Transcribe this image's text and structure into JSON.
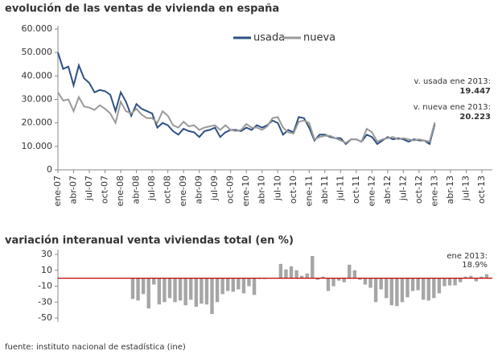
{
  "chart_data": [
    {
      "type": "line",
      "title": "evolución de las ventas de vivienda en españa",
      "categories": [
        "ene-07",
        null,
        null,
        "abr-07",
        null,
        null,
        "jul-07",
        null,
        null,
        "oct-07",
        null,
        null,
        "ene-08",
        null,
        null,
        "abr-08",
        null,
        null,
        "jul-08",
        null,
        null,
        "oct-08",
        null,
        null,
        "ene-09",
        null,
        null,
        "abr-09",
        null,
        null,
        "jul-09",
        null,
        null,
        "oct-09",
        null,
        null,
        "ene-10",
        null,
        null,
        "abr-10",
        null,
        null,
        "jul-10",
        null,
        null,
        "oct-10",
        null,
        null,
        "ene-11",
        null,
        null,
        "abr-11",
        null,
        null,
        "jul-11",
        null,
        null,
        "oct-11",
        null,
        null,
        "ene-12",
        null,
        null,
        "abr-12",
        null,
        null,
        "jul-12",
        null,
        null,
        "oct-12",
        null,
        null,
        "ene-13",
        null,
        null,
        "abr-13",
        null,
        null,
        "jul-13",
        null,
        null,
        "oct-13",
        null,
        null
      ],
      "series": [
        {
          "name": "usada",
          "color": "#2e5183",
          "values": [
            50000,
            43000,
            44000,
            36000,
            44500,
            39000,
            37000,
            33000,
            34000,
            33500,
            32000,
            25000,
            33000,
            29000,
            23000,
            28000,
            26000,
            25000,
            24000,
            18000,
            20000,
            19000,
            16500,
            15000,
            17500,
            16500,
            16000,
            14000,
            16500,
            17000,
            18000,
            14000,
            16000,
            17000,
            17000,
            16500,
            18000,
            17000,
            19000,
            18000,
            19000,
            21000,
            20000,
            15000,
            17000,
            16000,
            22500,
            22000,
            18000,
            12500,
            15000,
            15000,
            14000,
            13500,
            13500,
            11000,
            13000,
            13000,
            12000,
            15000,
            14000,
            11000,
            12500,
            14000,
            13000,
            13500,
            13000,
            12000,
            13000,
            12500,
            12500,
            11000,
            19447,
            null,
            null,
            null,
            null,
            null,
            null,
            null,
            null,
            null,
            null,
            null
          ]
        },
        {
          "name": "nueva",
          "color": "#9a9a9a",
          "values": [
            33000,
            29500,
            30000,
            25000,
            31000,
            27000,
            26500,
            25500,
            27500,
            26000,
            24000,
            20000,
            29000,
            25000,
            24000,
            26000,
            23500,
            22000,
            22000,
            20000,
            25000,
            23000,
            19000,
            18000,
            20500,
            18500,
            19000,
            17000,
            18000,
            18500,
            19000,
            17000,
            19000,
            17000,
            16500,
            17000,
            19500,
            18000,
            18000,
            17000,
            18500,
            22000,
            22500,
            18000,
            16000,
            15500,
            20500,
            21000,
            20000,
            13000,
            14000,
            14500,
            14500,
            13500,
            12500,
            11500,
            13000,
            13000,
            12000,
            17500,
            16000,
            12000,
            13000,
            13500,
            14000,
            13000,
            13500,
            13000,
            12500,
            13000,
            12500,
            12000,
            20223,
            null,
            null,
            null,
            null,
            null,
            null,
            null,
            null,
            null,
            null,
            null
          ]
        }
      ],
      "ylim": [
        0,
        60000
      ],
      "yticks": [
        0,
        {
          "value": 10000,
          "label": "10.000"
        },
        {
          "value": 20000,
          "label": "20.000"
        },
        {
          "value": 30000,
          "label": "30.000"
        },
        {
          "value": 40000,
          "label": "40.000"
        },
        {
          "value": 50000,
          "label": "50.000"
        },
        {
          "value": 60000,
          "label": "60.000"
        }
      ],
      "annotations": [
        "v. usada ene 2013:",
        "19.447",
        "v. nueva ene 2013:",
        "20.223"
      ],
      "legend": "top"
    },
    {
      "type": "bar",
      "title": "variación interanual venta viviendas total (en %)",
      "color": "#a6a6a6",
      "values": [
        -26,
        -28,
        -20,
        -38,
        -8,
        -33,
        -30,
        -25,
        -30,
        -28,
        -34,
        -27,
        -36,
        -32,
        -33,
        -45,
        -30,
        -20,
        -16,
        -17,
        -14,
        -19,
        -10,
        -21,
        -1,
        -1,
        0,
        0,
        18,
        11,
        15,
        10,
        3,
        6,
        28,
        -2,
        2,
        -16,
        -10,
        -3,
        -5,
        17,
        10,
        -2,
        -8,
        -12,
        -30,
        -14,
        -25,
        -34,
        -35,
        -30,
        -24,
        -16,
        -15,
        -27,
        -28,
        -25,
        -19,
        -10,
        -9,
        -9,
        -5,
        2,
        3,
        -4,
        2,
        5
      ],
      "ylim": [
        -55,
        30
      ],
      "yticks": [
        30,
        10,
        -10,
        -30,
        -50
      ],
      "zero_line_color": "#c00000",
      "annotations": [
        "ene 2013:",
        "18.9%"
      ]
    }
  ],
  "footer": "fuente: instituto nacional de estadística (ine)"
}
